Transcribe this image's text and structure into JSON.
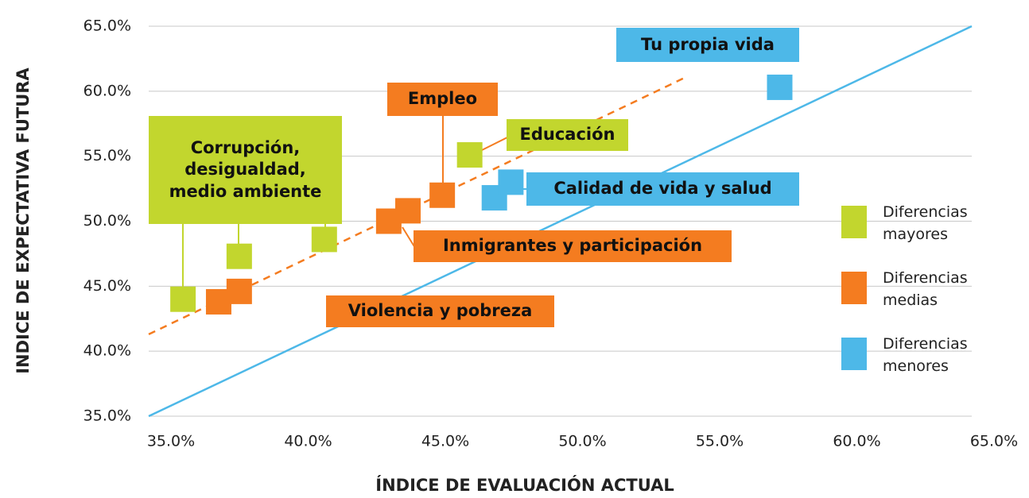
{
  "chart_data": {
    "type": "scatter",
    "x_label": "ÍNDICE DE EVALUACIÓN ACTUAL",
    "y_label": "INDICE DE EXPECTATIVA FUTURA",
    "xlim": [
      35,
      65
    ],
    "ylim": [
      35,
      65
    ],
    "xticks": [
      {
        "value": 35,
        "label": "35.0%"
      },
      {
        "value": 40,
        "label": "40.0%"
      },
      {
        "value": 45,
        "label": "45.0%"
      },
      {
        "value": 50,
        "label": "50.0%"
      },
      {
        "value": 55,
        "label": "55.0%"
      },
      {
        "value": 60,
        "label": "60.0%"
      },
      {
        "value": 65,
        "label": "65.0%"
      }
    ],
    "yticks": [
      {
        "value": 35,
        "label": "35.0%"
      },
      {
        "value": 40,
        "label": "40.0%"
      },
      {
        "value": 45,
        "label": "45.0%"
      },
      {
        "value": 50,
        "label": "50.0%"
      },
      {
        "value": 55,
        "label": "55.0%"
      },
      {
        "value": 60,
        "label": "60.0%"
      },
      {
        "value": 65,
        "label": "65.0%"
      }
    ],
    "grid": true,
    "legend": "right",
    "series": [
      {
        "name": "Diferencias mayores",
        "color": "#c2d62e",
        "x": [
          36.25,
          38.3,
          41.4,
          46.7
        ],
        "y": [
          44.0,
          47.3,
          48.6,
          55.1
        ]
      },
      {
        "name": "Diferencias medias",
        "color": "#f47c20",
        "x": [
          37.55,
          38.3,
          43.75,
          44.45,
          45.7
        ],
        "y": [
          43.8,
          44.6,
          50.0,
          50.8,
          52.0
        ]
      },
      {
        "name": "Diferencias menores",
        "color": "#4db8e8",
        "x": [
          47.6,
          48.2,
          58.0
        ],
        "y": [
          51.8,
          53.0,
          60.3
        ]
      }
    ],
    "lines": [
      {
        "color": "#4db8e8",
        "dashed": false,
        "x": [
          35,
          65
        ],
        "y": [
          35,
          65
        ]
      },
      {
        "color": "#f47c20",
        "dashed": true,
        "x": [
          35,
          54.5
        ],
        "y": [
          41.3,
          61.0
        ]
      }
    ],
    "annotations": [
      {
        "text": "Tu propia vida",
        "color": "#4db8e8"
      },
      {
        "text": "Empleo",
        "color": "#f47c20"
      },
      {
        "text": "Educación",
        "color": "#c2d62e"
      },
      {
        "text": "Corrupción, desigualdad, medio ambiente",
        "color": "#c2d62e"
      },
      {
        "text": "Calidad de vida y salud",
        "color": "#4db8e8"
      },
      {
        "text": "Inmigrantes y participación",
        "color": "#f47c20"
      },
      {
        "text": "Violencia y pobreza",
        "color": "#f47c20"
      }
    ]
  }
}
